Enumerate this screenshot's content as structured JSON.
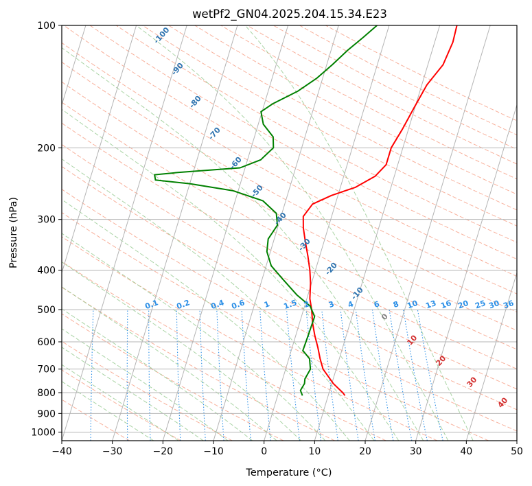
{
  "chart_data": {
    "type": "line",
    "subtype": "skew-t log-p diagram",
    "title": "wetPf2_GN04.2025.204.15.34.E23",
    "xlabel": "Temperature (°C)",
    "ylabel": "Pressure (hPa)",
    "xlim": [
      -40,
      50
    ],
    "ylim": [
      1050,
      100
    ],
    "y_scale": "log",
    "x_ticks": [
      -40,
      -30,
      -20,
      -10,
      0,
      10,
      20,
      30,
      40,
      50
    ],
    "y_ticks": [
      100,
      200,
      300,
      400,
      500,
      600,
      700,
      800,
      900,
      1000
    ],
    "grid": true,
    "series": [
      {
        "color": "#ff0000",
        "points": [
          [
            813,
            13.3
          ],
          [
            800,
            12.7
          ],
          [
            760,
            10.3
          ],
          [
            700,
            7.4
          ],
          [
            660,
            6.2
          ],
          [
            620,
            5.1
          ],
          [
            580,
            3.8
          ],
          [
            540,
            2.6
          ],
          [
            500,
            1.6
          ],
          [
            470,
            0.6
          ],
          [
            430,
            -0.2
          ],
          [
            400,
            -1.1
          ],
          [
            370,
            -2.3
          ],
          [
            340,
            -3.7
          ],
          [
            315,
            -4.9
          ],
          [
            295,
            -5.6
          ],
          [
            275,
            -4.5
          ],
          [
            262,
            -1.3
          ],
          [
            250,
            3.0
          ],
          [
            235,
            6.2
          ],
          [
            220,
            7.7
          ],
          [
            200,
            7.7
          ],
          [
            180,
            8.8
          ],
          [
            160,
            9.8
          ],
          [
            140,
            11.0
          ],
          [
            125,
            13.0
          ],
          [
            110,
            13.6
          ],
          [
            100,
            13.4
          ]
        ]
      },
      {
        "color": "#008000",
        "points": [
          [
            813,
            4.9
          ],
          [
            790,
            4.2
          ],
          [
            760,
            4.6
          ],
          [
            740,
            4.4
          ],
          [
            700,
            4.9
          ],
          [
            660,
            4.1
          ],
          [
            630,
            2.3
          ],
          [
            600,
            2.4
          ],
          [
            560,
            2.5
          ],
          [
            520,
            2.6
          ],
          [
            490,
            1.1
          ],
          [
            460,
            -2.2
          ],
          [
            420,
            -6.0
          ],
          [
            390,
            -9.0
          ],
          [
            360,
            -10.7
          ],
          [
            335,
            -11.2
          ],
          [
            310,
            -10.2
          ],
          [
            290,
            -11.1
          ],
          [
            270,
            -14.5
          ],
          [
            255,
            -21.0
          ],
          [
            245,
            -30.0
          ],
          [
            240,
            -37.0
          ],
          [
            233,
            -37.5
          ],
          [
            230,
            -33.0
          ],
          [
            224,
            -21.0
          ],
          [
            214,
            -17.4
          ],
          [
            200,
            -15.6
          ],
          [
            188,
            -16.3
          ],
          [
            175,
            -19.0
          ],
          [
            163,
            -20.2
          ],
          [
            156,
            -18.4
          ],
          [
            145,
            -14.1
          ],
          [
            135,
            -11.2
          ],
          [
            125,
            -8.9
          ],
          [
            115,
            -6.7
          ],
          [
            107,
            -4.4
          ],
          [
            100,
            -2.4
          ]
        ]
      }
    ],
    "mixing_ratio_labels": [
      "0.1",
      "0.2",
      "0.4",
      "0.6",
      "1",
      "1.5",
      "2",
      "3",
      "4",
      "6",
      "8",
      "10",
      "13",
      "16",
      "20",
      "25",
      "30",
      "36"
    ],
    "dry_adiabat_labels": [
      "-100",
      "-90",
      "-80",
      "-70",
      "-60",
      "-50",
      "-40",
      "-30",
      "-20",
      "-10"
    ],
    "moist_adiabat_labels": [
      "0",
      "10",
      "20",
      "30",
      "40"
    ]
  }
}
